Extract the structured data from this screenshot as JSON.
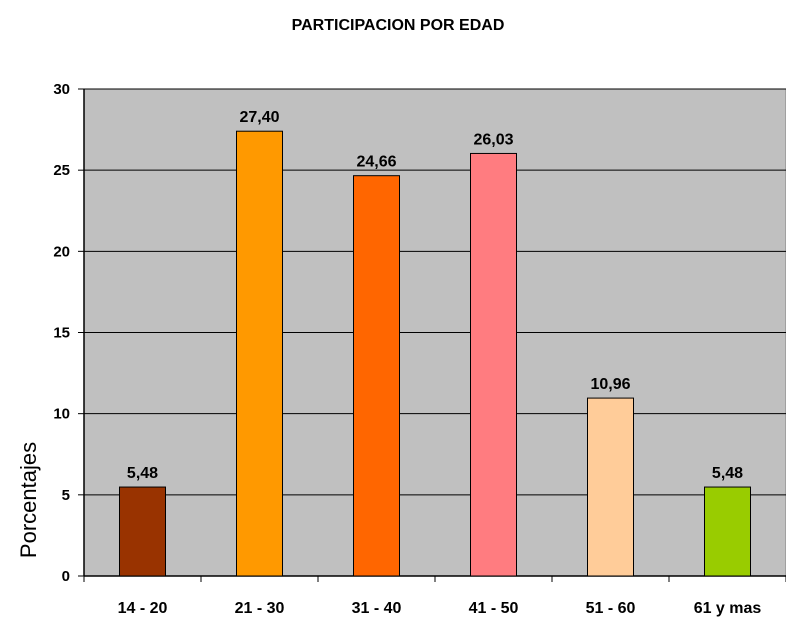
{
  "chart_data": {
    "type": "bar",
    "title": "PARTICIPACION POR EDAD",
    "xlabel": "",
    "ylabel": "Porcentajes",
    "ylim": [
      0,
      30
    ],
    "yticks": [
      "0",
      "5",
      "10",
      "15",
      "20",
      "25",
      "30"
    ],
    "grid": true,
    "categories": [
      "14 - 20",
      "21 - 30",
      "31 - 40",
      "41 - 50",
      "51 - 60",
      "61 y mas"
    ],
    "values": [
      5.48,
      27.4,
      24.66,
      26.03,
      10.96,
      5.48
    ],
    "value_labels": [
      "5,48",
      "27,40",
      "24,66",
      "26,03",
      "10,96",
      "5,48"
    ],
    "colors": [
      "#993300",
      "#FF9900",
      "#FF6600",
      "#FF7C80",
      "#FFCC99",
      "#99CC00"
    ],
    "plot_background": "#C0C0C0"
  }
}
